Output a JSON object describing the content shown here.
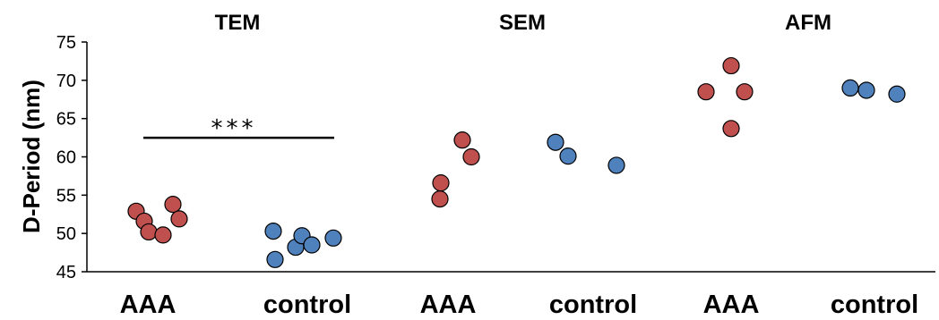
{
  "chart_data": {
    "type": "scatter",
    "ylabel": "D-Period (nm)",
    "ylim": [
      45,
      75
    ],
    "yticks": [
      45,
      50,
      55,
      60,
      65,
      70,
      75
    ],
    "grid": false,
    "colors": {
      "AAA": "#c0504d",
      "control": "#4f81bd",
      "outline": "#000000"
    },
    "groups": [
      {
        "title": "TEM",
        "categories": [
          {
            "label": "AAA",
            "points": [
              52.9,
              51.6,
              50.2,
              49.8,
              53.8,
              51.9
            ]
          },
          {
            "label": "control",
            "points": [
              50.3,
              46.6,
              48.2,
              49.7,
              48.5,
              49.4
            ]
          }
        ],
        "annotation": "***"
      },
      {
        "title": "SEM",
        "categories": [
          {
            "label": "AAA",
            "points": [
              54.5,
              56.6,
              62.2,
              60.0
            ]
          },
          {
            "label": "control",
            "points": [
              61.9,
              60.1,
              58.9
            ]
          }
        ]
      },
      {
        "title": "AFM",
        "categories": [
          {
            "label": "AAA",
            "points": [
              68.5,
              71.9,
              63.7,
              68.5
            ]
          },
          {
            "label": "control",
            "points": [
              69.0,
              68.7,
              68.2
            ]
          }
        ]
      }
    ]
  }
}
